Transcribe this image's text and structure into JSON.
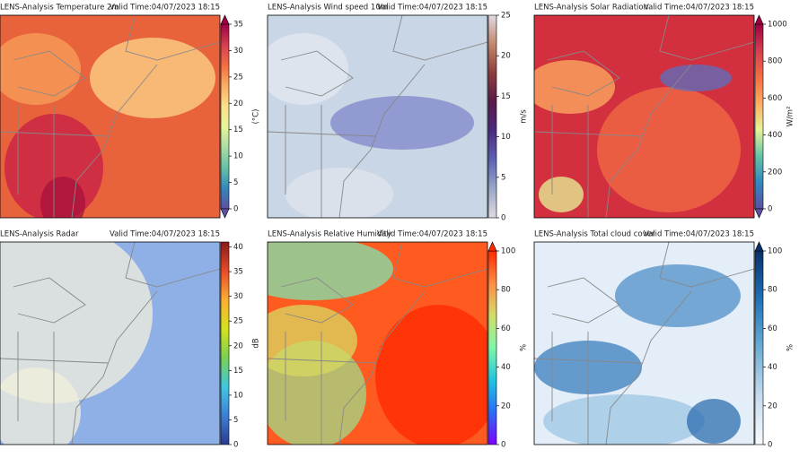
{
  "panels": [
    {
      "title": "LENS-Analysis Temperature 2m",
      "valid_time": "Valid Time:04/07/2023 18:15",
      "colorbar": {
        "label": "(°C)",
        "lim": [
          0,
          35
        ],
        "ticks": [
          0,
          5,
          10,
          15,
          20,
          25,
          30,
          35
        ],
        "extend": "both",
        "colors": [
          "#5e4fa2",
          "#3288bd",
          "#66c2a5",
          "#abdda4",
          "#e6f598",
          "#fee08b",
          "#fdae61",
          "#f46d43",
          "#d53e4f",
          "#9e0142"
        ]
      }
    },
    {
      "title": "LENS-Analysis Wind speed 10m",
      "valid_time": "Valid Time:04/07/2023 18:15",
      "colorbar": {
        "label": "m/s",
        "lim": [
          0,
          25
        ],
        "ticks": [
          0,
          5,
          10,
          15,
          20,
          25
        ],
        "extend": "neither",
        "colors": [
          "#e2d9e2",
          "#9aa8c7",
          "#5e63b5",
          "#4b2a7f",
          "#5a1a4a",
          "#8f3d3c",
          "#c2876c",
          "#e2d9e2"
        ]
      }
    },
    {
      "title": "LENS-Analysis Solar Radiation",
      "valid_time": "Valid Time:04/07/2023 18:15",
      "colorbar": {
        "label": "W/m²",
        "lim": [
          0,
          1000
        ],
        "ticks": [
          0,
          200,
          400,
          600,
          800,
          1000
        ],
        "extend": "both",
        "colors": [
          "#5e4fa2",
          "#3288bd",
          "#66c2a5",
          "#e6f598",
          "#fdae61",
          "#f46d43",
          "#d53e4f",
          "#9e0142"
        ]
      }
    },
    {
      "title": "LENS-Analysis Radar",
      "valid_time": "Valid Time:04/07/2023 18:15",
      "colorbar": {
        "label": "dB",
        "lim": [
          0,
          41
        ],
        "ticks": [
          0,
          5,
          10,
          15,
          20,
          25,
          30,
          35,
          40
        ],
        "extend": "neither",
        "colors": [
          "#2b3a8f",
          "#3d7fd8",
          "#3fc8e0",
          "#7ad151",
          "#d4e21b",
          "#fdae32",
          "#e84a27",
          "#8b1a1a"
        ]
      }
    },
    {
      "title": "LENS-Analysis Relative Humidity",
      "valid_time": "Valid Time:04/07/2023 18:15",
      "colorbar": {
        "label": "%",
        "lim": [
          0,
          100
        ],
        "ticks": [
          0,
          20,
          40,
          60,
          80,
          100
        ],
        "extend": "max",
        "colors": [
          "#7f00ff",
          "#2a6cf6",
          "#22c5e0",
          "#7ef7a8",
          "#d4dd6a",
          "#ff8c45",
          "#ff2a00"
        ]
      }
    },
    {
      "title": "LENS-Analysis Total cloud cover",
      "valid_time": "Valid Time:04/07/2023 18:15",
      "colorbar": {
        "label": "%",
        "lim": [
          0,
          100
        ],
        "ticks": [
          0,
          20,
          40,
          60,
          80,
          100
        ],
        "extend": "max",
        "colors": [
          "#f7fbff",
          "#c6dbef",
          "#6baed6",
          "#2171b5",
          "#08306b"
        ]
      }
    }
  ]
}
